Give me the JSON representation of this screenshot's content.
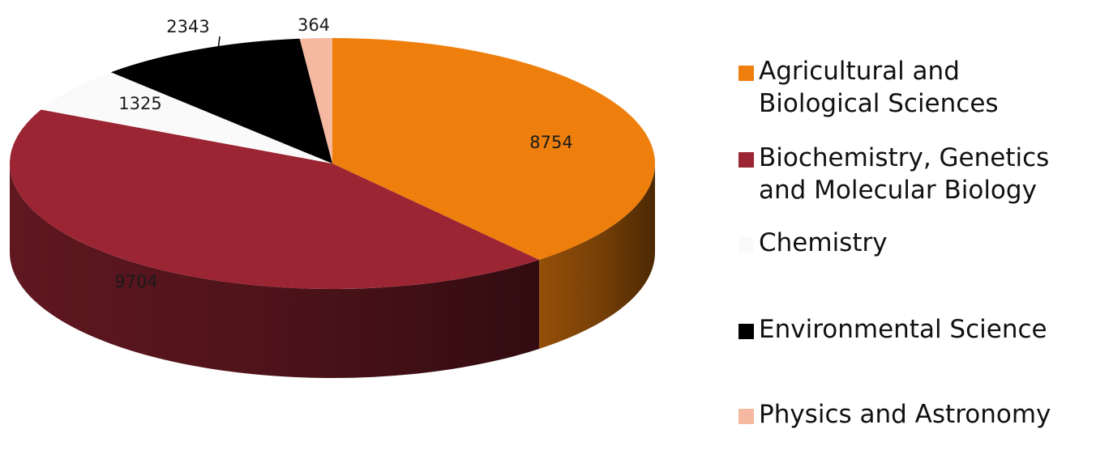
{
  "chart_data": {
    "type": "pie",
    "style": "3d",
    "title": "",
    "categories": [
      "Agricultural and Biological Sciences",
      "Biochemistry, Genetics and Molecular Biology",
      "Chemistry",
      "Environmental Science",
      "Physics and Astronomy"
    ],
    "legend_lines": [
      [
        "Agricultural and",
        "Biological Sciences"
      ],
      [
        "Biochemistry, Genetics",
        "and Molecular Biology"
      ],
      [
        "Chemistry"
      ],
      [
        "Environmental Science"
      ],
      [
        "Physics and Astronomy"
      ]
    ],
    "values": [
      8754,
      9704,
      1325,
      2343,
      364
    ],
    "labels": [
      "8754",
      "9704",
      "1325",
      "2343",
      "364"
    ],
    "colors": [
      "#ef7f0d",
      "#9b2533",
      "#fafafa",
      "#000000",
      "#f4b9a0"
    ],
    "legend_placement": "right"
  }
}
